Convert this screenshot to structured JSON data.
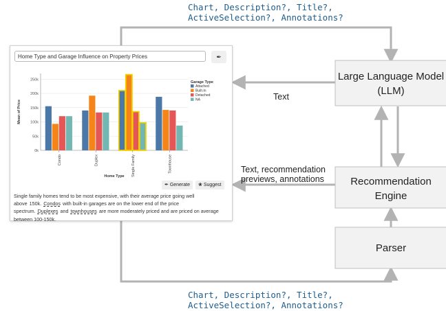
{
  "top_label": {
    "line1": "Chart, Description?, Title?,",
    "line2": "ActiveSelection?, Annotations?"
  },
  "bottom_label": {
    "line1": "Chart, Description?, Title?,",
    "line2": "ActiveSelection?, Annotations?"
  },
  "arrow_labels": {
    "text": "Text",
    "rec_line1": "Text, recommendation",
    "rec_line2": "previews, annotations"
  },
  "boxes": {
    "llm_line1": "Large Language Model",
    "llm_line2": "(LLM)",
    "rec_line1": "Recommendation",
    "rec_line2": "Engine",
    "parser": "Parser"
  },
  "panel": {
    "title_input": "Home Type and Garage Influence on Property Prices",
    "generate_icon": "feather-icon",
    "generate_label": "Generate",
    "suggest_icon": "lightbulb-icon",
    "suggest_label": "Suggest",
    "description": [
      {
        "t": "Single family homes tend to be most expensive, with their average price going well above",
        "u": false
      },
      {
        "t": "150k.",
        "u": false
      },
      {
        "t": "Condos",
        "u": true
      },
      {
        "t": "with built-in garages are on the lower end of the price spectrum.",
        "u": false
      },
      {
        "t": "Duplexes",
        "u": true
      },
      {
        "t": "and",
        "u": false
      },
      {
        "t": "townhouses",
        "u": true
      },
      {
        "t": "are more moderately priced and are priced on average between 100-150k.",
        "u": false
      }
    ]
  },
  "chart_data": {
    "type": "bar",
    "ylabel": "Mean of Price",
    "xlabel": "Home Type",
    "categories": [
      "Condo",
      "Duplex",
      "Single Family",
      "Townhouse"
    ],
    "y_ticks": [
      "0k",
      "50k",
      "100k",
      "150k",
      "200k",
      "250k"
    ],
    "ylim": [
      0,
      270000
    ],
    "legend_title": "Garage Type",
    "legend_position": "right",
    "series": [
      {
        "name": "Attached",
        "color": "#4c78a8",
        "values": [
          155000,
          140000,
          210000,
          188000
        ]
      },
      {
        "name": "Built-In",
        "color": "#f58518",
        "values": [
          93000,
          192000,
          266000,
          142000
        ]
      },
      {
        "name": "Detached",
        "color": "#e45756",
        "values": [
          120000,
          133000,
          136000,
          140000
        ]
      },
      {
        "name": "NA",
        "color": "#72b7b2",
        "values": [
          120000,
          133000,
          97000,
          87000
        ]
      }
    ],
    "highlighted_category": "Single Family",
    "highlight_color": "#f2d200"
  }
}
